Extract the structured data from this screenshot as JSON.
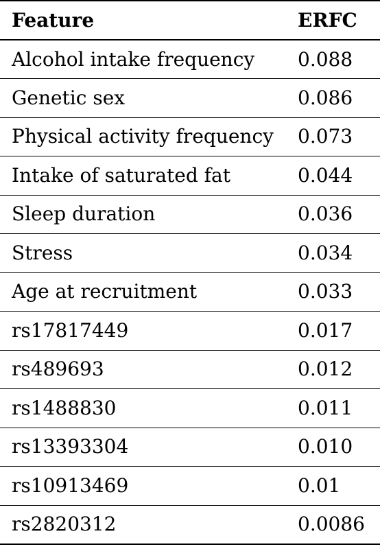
{
  "table": {
    "headers": [
      "Feature",
      "ERFC"
    ],
    "rows": [
      {
        "feature": "Alcohol intake frequency",
        "erfc": "0.088"
      },
      {
        "feature": "Genetic sex",
        "erfc": "0.086"
      },
      {
        "feature": "Physical activity frequency",
        "erfc": "0.073"
      },
      {
        "feature": "Intake of saturated fat",
        "erfc": "0.044"
      },
      {
        "feature": "Sleep duration",
        "erfc": "0.036"
      },
      {
        "feature": "Stress",
        "erfc": "0.034"
      },
      {
        "feature": "Age at recruitment",
        "erfc": "0.033"
      },
      {
        "feature": "rs17817449",
        "erfc": "0.017"
      },
      {
        "feature": "rs489693",
        "erfc": "0.012"
      },
      {
        "feature": "rs1488830",
        "erfc": "0.011"
      },
      {
        "feature": "rs13393304",
        "erfc": "0.010"
      },
      {
        "feature": "rs10913469",
        "erfc": "0.01"
      },
      {
        "feature": "rs2820312",
        "erfc": "0.0086"
      }
    ]
  }
}
